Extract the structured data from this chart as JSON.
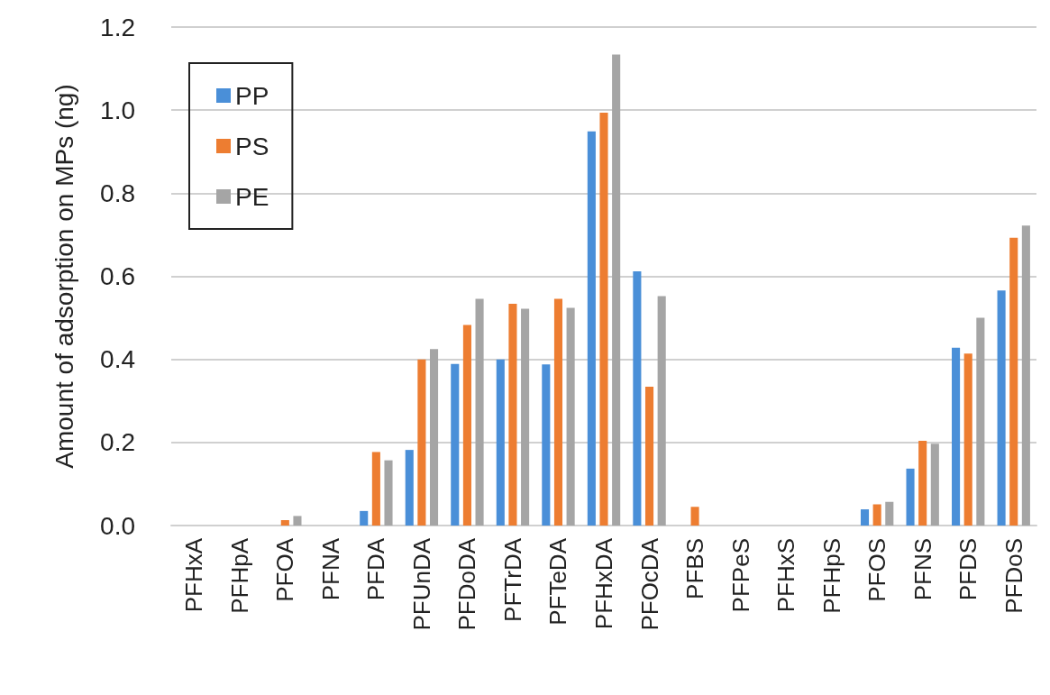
{
  "chart_data": {
    "type": "bar",
    "ylabel": "Amount of adsorption on MPs (ng)",
    "categories": [
      "PFHxA",
      "PFHpA",
      "PFOA",
      "PFNA",
      "PFDA",
      "PFUnDA",
      "PFDoDA",
      "PFTrDA",
      "PFTeDA",
      "PFHxDA",
      "PFOcDA",
      "PFBS",
      "PFPeS",
      "PFHxS",
      "PFHpS",
      "PFOS",
      "PFNS",
      "PFDS",
      "PFDoS"
    ],
    "series": [
      {
        "name": "PP",
        "color": "#4a8fd8",
        "values": [
          0,
          0,
          0,
          0,
          0.035,
          0.182,
          0.389,
          0.4,
          0.388,
          0.949,
          0.612,
          0,
          0,
          0,
          0,
          0.039,
          0.137,
          0.428,
          0.566
        ]
      },
      {
        "name": "PS",
        "color": "#ed7d31",
        "values": [
          0,
          0,
          0.013,
          0,
          0.177,
          0.4,
          0.483,
          0.534,
          0.546,
          0.994,
          0.334,
          0.045,
          0,
          0,
          0,
          0.051,
          0.204,
          0.414,
          0.693
        ]
      },
      {
        "name": "PE",
        "color": "#a5a5a5",
        "values": [
          0,
          0,
          0.023,
          0,
          0.157,
          0.425,
          0.546,
          0.522,
          0.524,
          1.134,
          0.552,
          0,
          0,
          0,
          0,
          0.057,
          0.197,
          0.5,
          0.722
        ]
      }
    ],
    "ylim": [
      0,
      1.2
    ],
    "yticks": [
      {
        "value": 0,
        "label": "0.0"
      },
      0.2,
      0.4,
      0.6,
      0.8,
      {
        "value": 1,
        "label": "1.0"
      },
      1.2
    ],
    "grid": "y",
    "legend": "top left"
  }
}
